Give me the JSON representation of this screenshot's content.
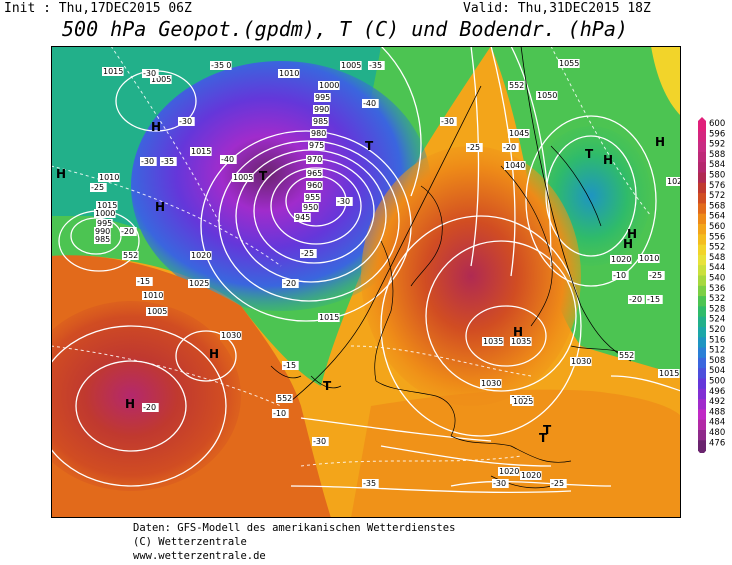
{
  "header": {
    "init": "Init : Thu,17DEC2015 06Z",
    "valid": "Valid: Thu,31DEC2015 18Z",
    "title": "500 hPa Geopot.(gpdm), T (C) und Bodendr. (hPa)"
  },
  "legend": {
    "values": [
      "600",
      "596",
      "592",
      "588",
      "584",
      "580",
      "576",
      "572",
      "568",
      "564",
      "560",
      "556",
      "552",
      "548",
      "544",
      "540",
      "536",
      "532",
      "528",
      "524",
      "520",
      "516",
      "512",
      "508",
      "504",
      "500",
      "496",
      "492",
      "488",
      "484",
      "480",
      "476"
    ],
    "colors": [
      "#e0207a",
      "#d4267e",
      "#c92c82",
      "#be2a78",
      "#b4286d",
      "#b02a52",
      "#c0392f",
      "#d14d22",
      "#e26a1b",
      "#ee8a18",
      "#f3a51a",
      "#f4bd1e",
      "#f2d42a",
      "#e8e23a",
      "#cbe03c",
      "#a7d83e",
      "#7ccf44",
      "#4cc452",
      "#2fbb6a",
      "#22b08a",
      "#1ca7a8",
      "#1e95c2",
      "#2a7fd6",
      "#3a66de",
      "#4c4fdc",
      "#6437da",
      "#8130d4",
      "#a02ccc",
      "#c02ac6",
      "#b22aa6",
      "#8e2a8a",
      "#6a246e"
    ]
  },
  "map": {
    "high_symbols": [
      {
        "label": "H",
        "color": "#000000"
      },
      {
        "label": "H",
        "color": "#000000"
      },
      {
        "label": "H",
        "color": "#000000"
      },
      {
        "label": "H",
        "color": "#000000"
      },
      {
        "label": "H",
        "color": "#000000"
      },
      {
        "label": "H",
        "color": "#000000"
      },
      {
        "label": "H",
        "color": "#000000"
      },
      {
        "label": "H",
        "color": "#000000"
      },
      {
        "label": "H",
        "color": "#000000"
      },
      {
        "label": "H",
        "color": "#000000"
      }
    ],
    "low_symbols": [
      "T",
      "T",
      "T",
      "T",
      "T",
      "T"
    ],
    "pressure_labels": [
      "1015",
      "1005",
      "1020",
      "1010",
      "1005",
      "1000",
      "995",
      "990",
      "985",
      "980",
      "975",
      "970",
      "965",
      "960",
      "955",
      "950",
      "945",
      "1010",
      "1005",
      "1015",
      "1020",
      "1025",
      "1030",
      "1035",
      "1040",
      "1045",
      "1050",
      "1055",
      "1025",
      "1030",
      "1025",
      "1020",
      "1035",
      "1030",
      "1025",
      "1020",
      "1015",
      "1010",
      "1020",
      "1015",
      "1005",
      "1010",
      "1015",
      "1000",
      "995",
      "990",
      "985"
    ],
    "temp_labels": [
      "-30",
      "-35",
      "-30",
      "-40",
      "-35",
      "-30",
      "-25",
      "-20",
      "-15",
      "-30",
      "-25",
      "-20",
      "-35",
      "-40",
      "-30",
      "-25",
      "-20",
      "-25",
      "-15",
      "-10",
      "-20",
      "-15",
      "-10",
      "-30",
      "-35",
      "-30",
      "-25",
      "-20"
    ],
    "gpdm_labels": [
      "552",
      "552",
      "552",
      "552"
    ]
  },
  "credits": {
    "line1": "Daten: GFS-Modell des amerikanischen Wetterdienstes",
    "line2": "(C) Wetterzentrale",
    "line3": "www.wetterzentrale.de"
  }
}
